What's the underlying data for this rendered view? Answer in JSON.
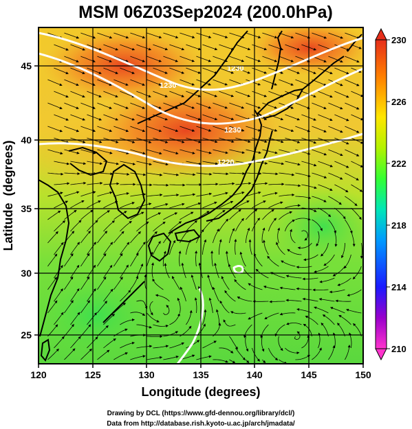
{
  "title": "MSM 06Z03Sep2024 (200.0hPa)",
  "x_axis": {
    "label": "Longitude (degrees)",
    "ticks": [
      "120",
      "125",
      "130",
      "135",
      "140",
      "145",
      "150"
    ]
  },
  "y_axis": {
    "label": "Latitude  (degrees)",
    "ticks": [
      "25",
      "30",
      "35",
      "40",
      "45"
    ]
  },
  "colorbar": {
    "ticks": [
      "230",
      "226",
      "222",
      "218",
      "214",
      "210"
    ],
    "min": 210,
    "max": 230,
    "colors": [
      "#ff33cc",
      "#9900cc",
      "#1a1aff",
      "#0099ff",
      "#00e6b8",
      "#33ff33",
      "#b3f200",
      "#ffe600",
      "#ff8000",
      "#e62e1a"
    ]
  },
  "contour_labels": [
    "1230",
    "1230",
    "1230",
    "1220"
  ],
  "credits": {
    "line1": "Drawing by DCL (https://www.gfd-dennou.org/library/dcl/)",
    "line2": "Data from http://database.rish.kyoto-u.ac.jp/arch/jmadata/"
  },
  "map": {
    "lon_range": [
      120,
      150
    ],
    "lat_range": [
      22.7,
      48
    ],
    "field": "temperature shading with wind streamlines and white geopotential height contours"
  }
}
